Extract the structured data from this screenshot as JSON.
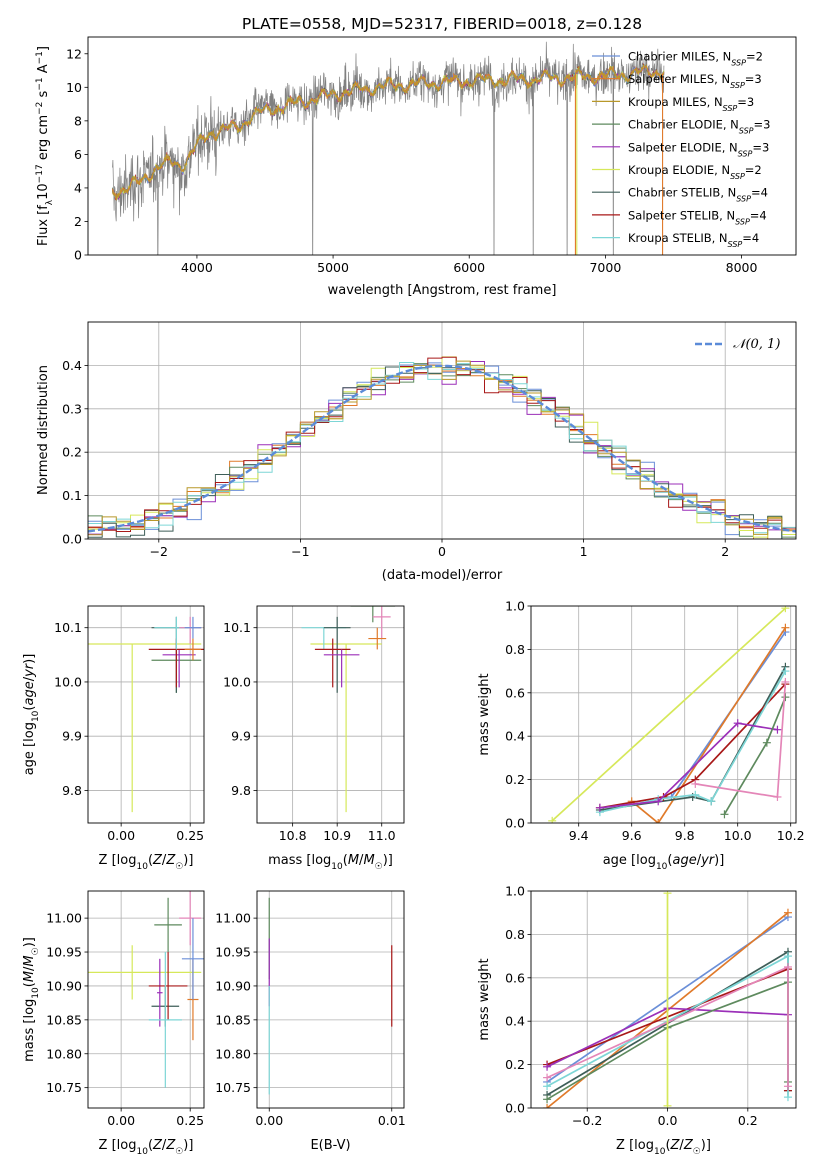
{
  "figure_title": "PLATE=0558, MJD=52317, FIBERID=0018, z=0.128",
  "colors": {
    "chabrier_miles": "#6b8fd8",
    "salpeter_miles": "#e07a2a",
    "kroupa_miles": "#b8982a",
    "chabrier_elodie": "#5e8a5e",
    "salpeter_elodie": "#9b2fb8",
    "kroupa_elodie": "#d6e85a",
    "chabrier_stelib": "#3e5e58",
    "salpeter_stelib": "#a81818",
    "kroupa_stelib": "#7dd6d6",
    "data": "#808080",
    "extra_pink": "#e486b8",
    "gaussian": "#5b8bd8"
  },
  "chart_data": [
    {
      "id": "spectrum",
      "type": "line",
      "title": "PLATE=0558, MJD=52317, FIBERID=0018, z=0.128",
      "xlabel": "wavelength [Angstrom, rest frame]",
      "ylabel": "Flux [f_λ 10^-17 erg cm^-2 s^-1 A^-1]",
      "xlim": [
        3200,
        8400
      ],
      "ylim": [
        0,
        13
      ],
      "xticks": [
        4000,
        5000,
        6000,
        7000,
        8000
      ],
      "yticks": [
        0,
        2,
        4,
        6,
        8,
        10,
        12
      ],
      "grid": false,
      "legend_position": "right",
      "spectrum_range": [
        3380,
        7430
      ],
      "continuum": [
        [
          3400,
          3.8
        ],
        [
          3500,
          4.0
        ],
        [
          3600,
          4.5
        ],
        [
          3700,
          5.2
        ],
        [
          3800,
          5.5
        ],
        [
          3900,
          5.4
        ],
        [
          4000,
          6.5
        ],
        [
          4100,
          7.3
        ],
        [
          4200,
          7.5
        ],
        [
          4300,
          7.6
        ],
        [
          4400,
          8.3
        ],
        [
          4500,
          8.6
        ],
        [
          4700,
          9.0
        ],
        [
          5000,
          9.6
        ],
        [
          5300,
          10.0
        ],
        [
          5600,
          10.2
        ],
        [
          6000,
          10.4
        ],
        [
          6500,
          10.5
        ],
        [
          7000,
          10.7
        ],
        [
          7430,
          11.0
        ]
      ],
      "series": [
        {
          "name": "Chabrier MILES, N_SSP=2"
        },
        {
          "name": "Salpeter MILES, N_SSP=3"
        },
        {
          "name": "Kroupa MILES, N_SSP=3"
        },
        {
          "name": "Chabrier ELODIE, N_SSP=3"
        },
        {
          "name": "Salpeter ELODIE, N_SSP=3"
        },
        {
          "name": "Kroupa ELODIE, N_SSP=2"
        },
        {
          "name": "Chabrier STELIB, N_SSP=4"
        },
        {
          "name": "Salpeter STELIB, N_SSP=4"
        },
        {
          "name": "Kroupa STELIB, N_SSP=4"
        }
      ],
      "cutoffs": [
        {
          "series": 5,
          "x": 6790
        },
        {
          "series": 1,
          "x": 6780
        },
        {
          "series": 1,
          "x": 7420
        }
      ]
    },
    {
      "id": "residuals",
      "type": "bar",
      "xlabel": "(data-model)/error",
      "ylabel": "Normed distribution",
      "xlim": [
        -2.5,
        2.5
      ],
      "ylim": [
        0,
        0.5
      ],
      "xticks": [
        -2,
        -1,
        0,
        1,
        2
      ],
      "yticks": [
        0.0,
        0.1,
        0.2,
        0.3,
        0.4
      ],
      "grid": true,
      "bin_width": 0.1,
      "legend": "N(0,1)",
      "legend_position": "top-right"
    },
    {
      "id": "age_vs_z",
      "type": "scatter",
      "xlabel": "Z [log10(Z/Z☉)]",
      "ylabel": "age [log10(age/yr)]",
      "xlim": [
        -0.12,
        0.3
      ],
      "ylim": [
        9.74,
        10.14
      ],
      "xticks": [
        0.0,
        0.25
      ],
      "yticks": [
        9.8,
        9.9,
        10.0,
        10.1
      ],
      "grid": true,
      "errorbars": [
        {
          "color": "kroupa_elodie",
          "x": 0.04,
          "xerr": 0.25,
          "y": 10.07,
          "yerr_low": 0.31,
          "yerr_high": 0.0
        },
        {
          "color": "chabrier_elodie",
          "x": 0.2,
          "xerr": 0.09,
          "y": 10.04,
          "yerr_low": 0.06,
          "yerr_high": 0.02
        },
        {
          "color": "chabrier_stelib",
          "x": 0.2,
          "xerr": 0.09,
          "y": 10.1,
          "yerr_low": 0.12,
          "yerr_high": 0.02
        },
        {
          "color": "salpeter_elodie",
          "x": 0.21,
          "xerr": 0.06,
          "y": 10.05,
          "yerr_low": 0.06,
          "yerr_high": 0.01
        },
        {
          "color": "salpeter_stelib",
          "x": 0.2,
          "xerr": 0.1,
          "y": 10.06,
          "yerr_low": 0.07,
          "yerr_high": 0.02
        },
        {
          "color": "kroupa_stelib",
          "x": 0.2,
          "xerr": 0.08,
          "y": 10.1,
          "yerr_low": 0.04,
          "yerr_high": 0.02
        },
        {
          "color": "extra_pink",
          "x": 0.25,
          "xerr": 0.04,
          "y": 10.1,
          "yerr_low": 0.03,
          "yerr_high": 0.02
        },
        {
          "color": "salpeter_miles",
          "x": 0.26,
          "xerr": 0.03,
          "y": 10.06,
          "yerr_low": 0.02,
          "yerr_high": 0.02
        },
        {
          "color": "chabrier_miles",
          "x": 0.26,
          "xerr": 0.03,
          "y": 10.1,
          "yerr_low": 0.02,
          "yerr_high": 0.02
        }
      ]
    },
    {
      "id": "age_vs_mass",
      "type": "scatter",
      "xlabel": "mass [log10(M/M☉)]",
      "ylabel": "",
      "xlim": [
        10.72,
        11.05
      ],
      "ylim": [
        9.74,
        10.14
      ],
      "xticks": [
        10.8,
        10.9,
        11.0
      ],
      "yticks": [
        9.8,
        9.9,
        10.0,
        10.1
      ],
      "grid": true,
      "errorbars": [
        {
          "color": "kroupa_elodie",
          "x": 10.92,
          "xerr": 0.08,
          "y": 10.07,
          "yerr_low": 0.31,
          "yerr_high": 0.0
        },
        {
          "color": "kroupa_stelib",
          "x": 10.87,
          "xerr": 0.05,
          "y": 10.1,
          "yerr_low": 0.04,
          "yerr_high": 0.0
        },
        {
          "color": "chabrier_stelib",
          "x": 10.9,
          "xerr": 0.03,
          "y": 10.1,
          "yerr_low": 0.12,
          "yerr_high": 0.02
        },
        {
          "color": "salpeter_stelib",
          "x": 10.89,
          "xerr": 0.04,
          "y": 10.06,
          "yerr_low": 0.07,
          "yerr_high": 0.02
        },
        {
          "color": "salpeter_elodie",
          "x": 10.91,
          "xerr": 0.04,
          "y": 10.05,
          "yerr_low": 0.06,
          "yerr_high": 0.01
        },
        {
          "color": "chabrier_elodie",
          "x": 10.98,
          "xerr": 0.05,
          "y": 10.14,
          "yerr_low": 0.03,
          "yerr_high": 0.01
        },
        {
          "color": "extra_pink",
          "x": 11.0,
          "xerr": 0.02,
          "y": 10.12,
          "yerr_low": 0.04,
          "yerr_high": 0.02
        },
        {
          "color": "salpeter_miles",
          "x": 10.99,
          "xerr": 0.02,
          "y": 10.08,
          "yerr_low": 0.02,
          "yerr_high": 0.02
        }
      ]
    },
    {
      "id": "weight_vs_age",
      "type": "line",
      "xlabel": "age [log10(age/yr)]",
      "ylabel": "mass weight",
      "xlim": [
        9.22,
        10.22
      ],
      "ylim": [
        0,
        1
      ],
      "xticks": [
        9.4,
        9.6,
        9.8,
        10.0,
        10.2
      ],
      "yticks": [
        0.0,
        0.2,
        0.4,
        0.6,
        0.8,
        1.0
      ],
      "grid": true,
      "series": [
        {
          "color": "kroupa_elodie",
          "x": [
            9.3,
            10.18
          ],
          "y": [
            0.01,
            0.99
          ]
        },
        {
          "color": "chabrier_miles",
          "x": [
            9.75,
            10.18
          ],
          "y": [
            0.12,
            0.88
          ]
        },
        {
          "color": "salpeter_miles",
          "x": [
            9.6,
            9.7,
            10.18
          ],
          "y": [
            0.1,
            0.0,
            0.9
          ]
        },
        {
          "color": "chabrier_stelib",
          "x": [
            9.48,
            9.83,
            9.9,
            10.18
          ],
          "y": [
            0.06,
            0.12,
            0.1,
            0.72
          ]
        },
        {
          "color": "salpeter_stelib",
          "x": [
            9.48,
            9.72,
            9.84,
            10.18
          ],
          "y": [
            0.07,
            0.12,
            0.2,
            0.64
          ]
        },
        {
          "color": "kroupa_stelib",
          "x": [
            9.48,
            9.7,
            9.84,
            9.9,
            10.18
          ],
          "y": [
            0.05,
            0.11,
            0.13,
            0.1,
            0.7
          ]
        },
        {
          "color": "salpeter_elodie",
          "x": [
            9.48,
            9.7,
            10.0,
            10.15
          ],
          "y": [
            0.07,
            0.1,
            0.46,
            0.43
          ]
        },
        {
          "color": "chabrier_elodie",
          "x": [
            9.95,
            10.11,
            10.18
          ],
          "y": [
            0.04,
            0.37,
            0.58
          ]
        },
        {
          "color": "extra_pink",
          "x": [
            9.84,
            10.15,
            10.18
          ],
          "y": [
            0.18,
            0.12,
            0.65
          ]
        }
      ]
    },
    {
      "id": "mass_vs_z",
      "type": "scatter",
      "xlabel": "Z [log10(Z/Z☉)]",
      "ylabel": "mass [log10(M/M☉)]",
      "xlim": [
        -0.12,
        0.3
      ],
      "ylim": [
        10.72,
        11.04
      ],
      "xticks": [
        0.0,
        0.25
      ],
      "yticks": [
        10.75,
        10.8,
        10.85,
        10.9,
        10.95,
        11.0
      ],
      "grid": true,
      "errorbars": [
        {
          "color": "kroupa_elodie",
          "x": 0.04,
          "xerr": 0.25,
          "y": 10.92,
          "yerr": 0.04
        },
        {
          "color": "chabrier_elodie",
          "x": 0.17,
          "xerr": 0.05,
          "y": 10.99,
          "yerr": 0.04
        },
        {
          "color": "chabrier_stelib",
          "x": 0.16,
          "xerr": 0.05,
          "y": 10.87,
          "yerr": 0.03
        },
        {
          "color": "salpeter_elodie",
          "x": 0.14,
          "xerr": 0.01,
          "y": 10.89,
          "yerr": 0.05
        },
        {
          "color": "salpeter_stelib",
          "x": 0.17,
          "xerr": 0.07,
          "y": 10.9,
          "yerr": 0.05
        },
        {
          "color": "kroupa_stelib",
          "x": 0.16,
          "xerr": 0.06,
          "y": 10.85,
          "yerr": 0.1
        },
        {
          "color": "extra_pink",
          "x": 0.25,
          "xerr": 0.04,
          "y": 11.0,
          "yerr": 0.04
        },
        {
          "color": "salpeter_miles",
          "x": 0.26,
          "xerr": 0.02,
          "y": 10.88,
          "yerr": 0.06
        },
        {
          "color": "chabrier_miles",
          "x": 0.26,
          "xerr": 0.04,
          "y": 10.94,
          "yerr": 0.06
        }
      ]
    },
    {
      "id": "mass_vs_ebv",
      "type": "scatter",
      "xlabel": "E(B-V)",
      "ylabel": "",
      "xlim": [
        -0.001,
        0.011
      ],
      "ylim": [
        10.72,
        11.04
      ],
      "xticks": [
        0.0,
        0.01
      ],
      "yticks": [
        10.75,
        10.8,
        10.85,
        10.9,
        10.95,
        11.0
      ],
      "grid": true,
      "errorbars": [
        {
          "color": "chabrier_elodie",
          "x": 0.0,
          "y": 10.97,
          "yerr": 0.06
        },
        {
          "color": "salpeter_elodie",
          "x": 0.0,
          "y": 10.92,
          "yerr": 0.05
        },
        {
          "color": "kroupa_stelib",
          "x": 0.0,
          "y": 10.82,
          "yerr": 0.08
        },
        {
          "color": "salpeter_stelib",
          "x": 0.01,
          "y": 10.9,
          "yerr": 0.06
        }
      ]
    },
    {
      "id": "weight_vs_z",
      "type": "line",
      "xlabel": "Z [log10(Z/Z☉)]",
      "ylabel": "mass weight",
      "xlim": [
        -0.34,
        0.32
      ],
      "ylim": [
        0,
        1
      ],
      "xticks": [
        -0.2,
        0.0,
        0.2
      ],
      "yticks": [
        0.0,
        0.2,
        0.4,
        0.6,
        0.8,
        1.0
      ],
      "grid": true,
      "series": [
        {
          "color": "chabrier_miles",
          "x": [
            -0.3,
            0.3
          ],
          "y": [
            0.12,
            0.88
          ]
        },
        {
          "color": "salpeter_miles",
          "x": [
            -0.3,
            0.3
          ],
          "y": [
            0.0,
            0.9
          ]
        },
        {
          "color": "chabrier_stelib",
          "x": [
            -0.3,
            0.3,
            0.3
          ],
          "y": [
            0.06,
            0.72,
            0.08
          ]
        },
        {
          "color": "salpeter_stelib",
          "x": [
            -0.3,
            0.3,
            0.3
          ],
          "y": [
            0.2,
            0.64,
            0.08
          ]
        },
        {
          "color": "kroupa_stelib",
          "x": [
            -0.3,
            0.3,
            0.3
          ],
          "y": [
            0.1,
            0.7,
            0.05
          ]
        },
        {
          "color": "salpeter_elodie",
          "x": [
            -0.3,
            0.0,
            0.3
          ],
          "y": [
            0.19,
            0.46,
            0.43
          ]
        },
        {
          "color": "chabrier_elodie",
          "x": [
            -0.3,
            0.0,
            0.3,
            0.3
          ],
          "y": [
            0.04,
            0.37,
            0.58,
            0.12
          ]
        },
        {
          "color": "extra_pink",
          "x": [
            -0.3,
            0.3,
            0.3
          ],
          "y": [
            0.14,
            0.65,
            0.1
          ]
        },
        {
          "color": "kroupa_elodie",
          "x": [
            0.0,
            0.0
          ],
          "y": [
            0.01,
            0.99
          ]
        }
      ]
    }
  ]
}
